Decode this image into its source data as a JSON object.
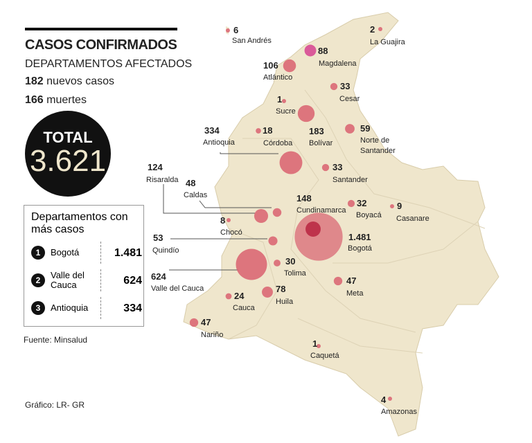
{
  "header": {
    "title": "CASOS CONFIRMADOS",
    "subtitle": "DEPARTAMENTOS AFECTADOS",
    "new_cases": {
      "value": "182",
      "label": "nuevos casos"
    },
    "deaths": {
      "value": "166",
      "label": "muertes"
    },
    "total": {
      "label": "TOTAL",
      "value": "3.621"
    }
  },
  "top_box": {
    "title": "Departamentos con más casos",
    "rows": [
      {
        "rank": "1",
        "name": "Bogotá",
        "value": "1.481"
      },
      {
        "rank": "2",
        "name": "Valle del Cauca",
        "value": "624"
      },
      {
        "rank": "3",
        "name": "Antioquia",
        "value": "334"
      }
    ]
  },
  "source": "Fuente: Minsalud",
  "credit": "Gráfico: LR- GR",
  "departments": [
    {
      "name": "San Andrés",
      "cases": 6
    },
    {
      "name": "La Guajira",
      "cases": 2
    },
    {
      "name": "Magdalena",
      "cases": 88
    },
    {
      "name": "Atlántico",
      "cases": 106
    },
    {
      "name": "Cesar",
      "cases": 33
    },
    {
      "name": "Sucre",
      "cases": 1
    },
    {
      "name": "Bolívar",
      "cases": 183
    },
    {
      "name": "Córdoba",
      "cases": 18
    },
    {
      "name": "Antioquia",
      "cases": 334
    },
    {
      "name": "Norte de Santander",
      "cases": 59
    },
    {
      "name": "Santander",
      "cases": 33
    },
    {
      "name": "Risaralda",
      "cases": 124
    },
    {
      "name": "Caldas",
      "cases": 48
    },
    {
      "name": "Cundinamarca",
      "cases": 148
    },
    {
      "name": "Boyacá",
      "cases": 32
    },
    {
      "name": "Casanare",
      "cases": 9
    },
    {
      "name": "Chocó",
      "cases": 8
    },
    {
      "name": "Quindío",
      "cases": 53
    },
    {
      "name": "Bogotá",
      "cases": {
        "value": 1481,
        "label": "1.481"
      }
    },
    {
      "name": "Valle del Cauca",
      "cases": 624
    },
    {
      "name": "Tolima",
      "cases": 30
    },
    {
      "name": "Meta",
      "cases": 47
    },
    {
      "name": "Cauca",
      "cases": 24
    },
    {
      "name": "Huila",
      "cases": 78
    },
    {
      "name": "Nariño",
      "cases": 47
    },
    {
      "name": "Caquetá",
      "cases": 1
    },
    {
      "name": "Amazonas",
      "cases": 4
    }
  ]
}
